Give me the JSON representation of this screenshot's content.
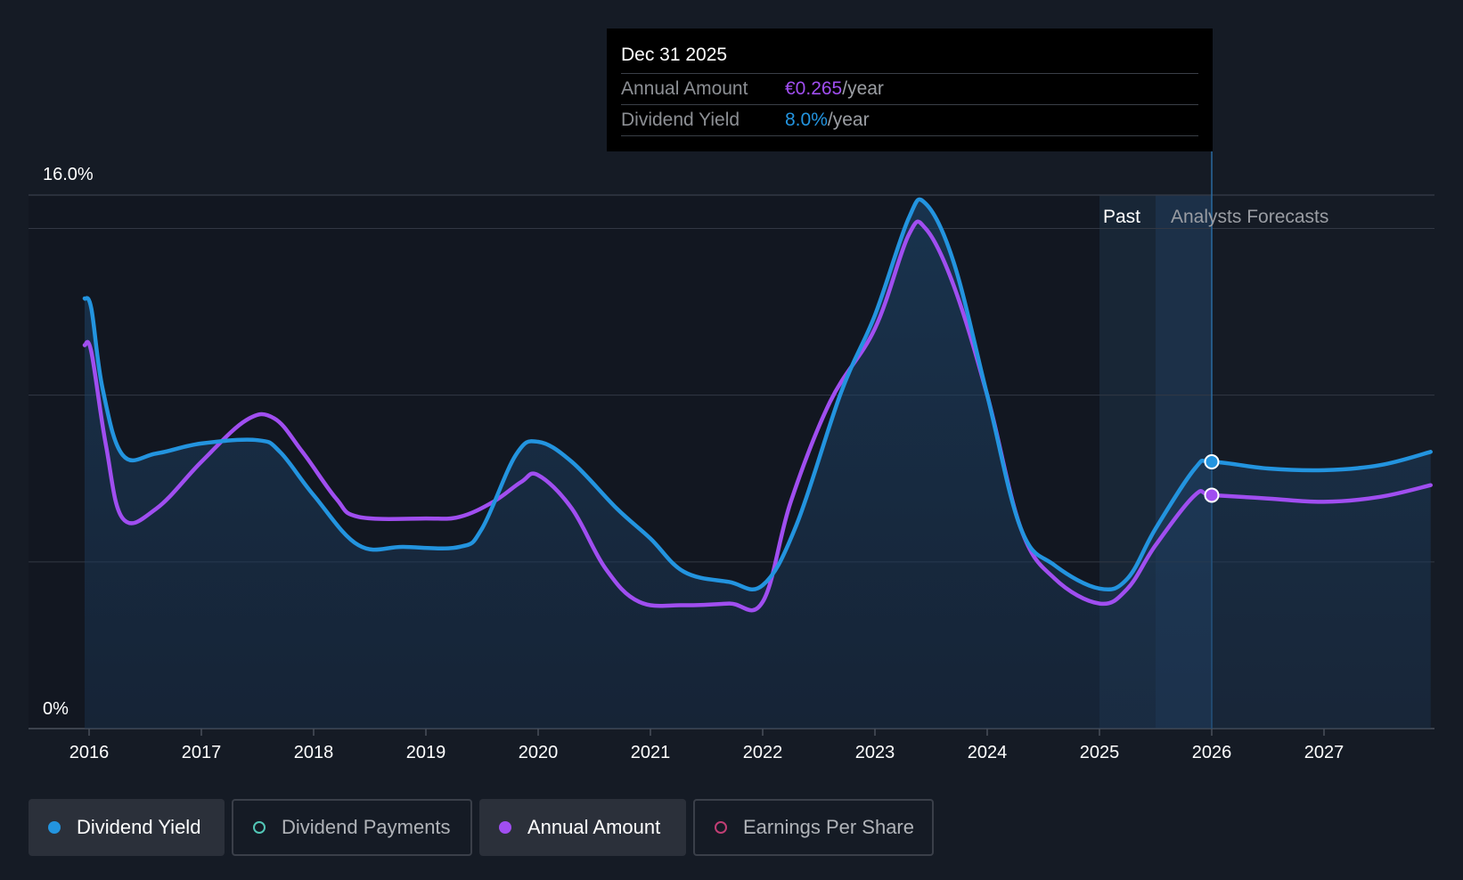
{
  "tooltip": {
    "date": "Dec 31 2025",
    "annual_label": "Annual Amount",
    "annual_value": "€0.265",
    "annual_unit": "/year",
    "yield_label": "Dividend Yield",
    "yield_value": "8.0%",
    "yield_unit": "/year"
  },
  "regions": {
    "past_label": "Past",
    "forecast_label": "Analysts Forecasts"
  },
  "legend": [
    {
      "label": "Dividend Yield",
      "state": "active",
      "dot": "filled",
      "color": "#2394df"
    },
    {
      "label": "Dividend Payments",
      "state": "inactive",
      "dot": "hollow",
      "color": "#52c6b6"
    },
    {
      "label": "Annual Amount",
      "state": "active",
      "dot": "filled",
      "color": "#a04ef0"
    },
    {
      "label": "Earnings Per Share",
      "state": "inactive",
      "dot": "hollow",
      "color": "#c03e74"
    }
  ],
  "colors": {
    "background": "#151b25",
    "yield_line": "#2394df",
    "annual_line": "#a04ef0",
    "grid": "#323844",
    "tooltip_annual": "#a04ef0",
    "tooltip_yield": "#2394df"
  },
  "chart_data": {
    "type": "line",
    "y_tick_labels": [
      "16.0%",
      "0%"
    ],
    "ylim": [
      0,
      16
    ],
    "x_tick_labels": [
      "2016",
      "2017",
      "2018",
      "2019",
      "2020",
      "2021",
      "2022",
      "2023",
      "2024",
      "2025",
      "2026",
      "2027"
    ],
    "xlim": [
      2015.55,
      2027.95
    ],
    "grid": true,
    "past_forecast_boundary": 2025.5,
    "highlight_x": 2026,
    "series": [
      {
        "name": "Dividend Yield",
        "points": [
          [
            2015.96,
            12.9
          ],
          [
            2016.02,
            12.6
          ],
          [
            2016.12,
            10.2
          ],
          [
            2016.3,
            8.2
          ],
          [
            2016.6,
            8.25
          ],
          [
            2017.0,
            8.55
          ],
          [
            2017.5,
            8.65
          ],
          [
            2017.7,
            8.3
          ],
          [
            2018.0,
            7.0
          ],
          [
            2018.4,
            5.5
          ],
          [
            2018.8,
            5.45
          ],
          [
            2019.3,
            5.45
          ],
          [
            2019.5,
            6.0
          ],
          [
            2019.8,
            8.2
          ],
          [
            2020.0,
            8.6
          ],
          [
            2020.3,
            8.0
          ],
          [
            2020.7,
            6.6
          ],
          [
            2021.0,
            5.7
          ],
          [
            2021.3,
            4.7
          ],
          [
            2021.7,
            4.4
          ],
          [
            2022.0,
            4.3
          ],
          [
            2022.3,
            6.1
          ],
          [
            2022.7,
            10.1
          ],
          [
            2023.0,
            12.4
          ],
          [
            2023.3,
            15.3
          ],
          [
            2023.45,
            15.75
          ],
          [
            2023.7,
            14.0
          ],
          [
            2024.0,
            10.0
          ],
          [
            2024.3,
            6.0
          ],
          [
            2024.6,
            4.9
          ],
          [
            2025.0,
            4.2
          ],
          [
            2025.25,
            4.5
          ],
          [
            2025.5,
            6.0
          ],
          [
            2025.85,
            7.8
          ],
          [
            2026.0,
            8.0
          ],
          [
            2026.5,
            7.8
          ],
          [
            2027.0,
            7.75
          ],
          [
            2027.5,
            7.9
          ],
          [
            2027.95,
            8.3
          ]
        ]
      },
      {
        "name": "Annual Amount",
        "points": [
          [
            2015.96,
            11.5
          ],
          [
            2016.02,
            11.3
          ],
          [
            2016.15,
            8.5
          ],
          [
            2016.3,
            6.3
          ],
          [
            2016.6,
            6.6
          ],
          [
            2017.0,
            8.0
          ],
          [
            2017.4,
            9.25
          ],
          [
            2017.65,
            9.3
          ],
          [
            2017.9,
            8.3
          ],
          [
            2018.2,
            6.9
          ],
          [
            2018.4,
            6.35
          ],
          [
            2019.0,
            6.3
          ],
          [
            2019.3,
            6.35
          ],
          [
            2019.6,
            6.8
          ],
          [
            2019.85,
            7.4
          ],
          [
            2020.0,
            7.6
          ],
          [
            2020.3,
            6.6
          ],
          [
            2020.6,
            4.8
          ],
          [
            2020.9,
            3.8
          ],
          [
            2021.3,
            3.7
          ],
          [
            2021.7,
            3.75
          ],
          [
            2022.0,
            3.8
          ],
          [
            2022.25,
            6.8
          ],
          [
            2022.6,
            9.8
          ],
          [
            2023.0,
            12.0
          ],
          [
            2023.3,
            14.8
          ],
          [
            2023.45,
            15.0
          ],
          [
            2023.7,
            13.3
          ],
          [
            2024.0,
            10.0
          ],
          [
            2024.3,
            6.0
          ],
          [
            2024.6,
            4.5
          ],
          [
            2025.0,
            3.75
          ],
          [
            2025.25,
            4.2
          ],
          [
            2025.5,
            5.5
          ],
          [
            2025.85,
            7.0
          ],
          [
            2026.0,
            7.0
          ],
          [
            2026.5,
            6.9
          ],
          [
            2027.0,
            6.8
          ],
          [
            2027.5,
            6.95
          ],
          [
            2027.95,
            7.3
          ]
        ]
      }
    ],
    "highlight_values": [
      {
        "series": "Dividend Yield",
        "x": 2026.0,
        "y": 8.0
      },
      {
        "series": "Annual Amount",
        "x": 2026.0,
        "y": 7.0
      }
    ]
  }
}
